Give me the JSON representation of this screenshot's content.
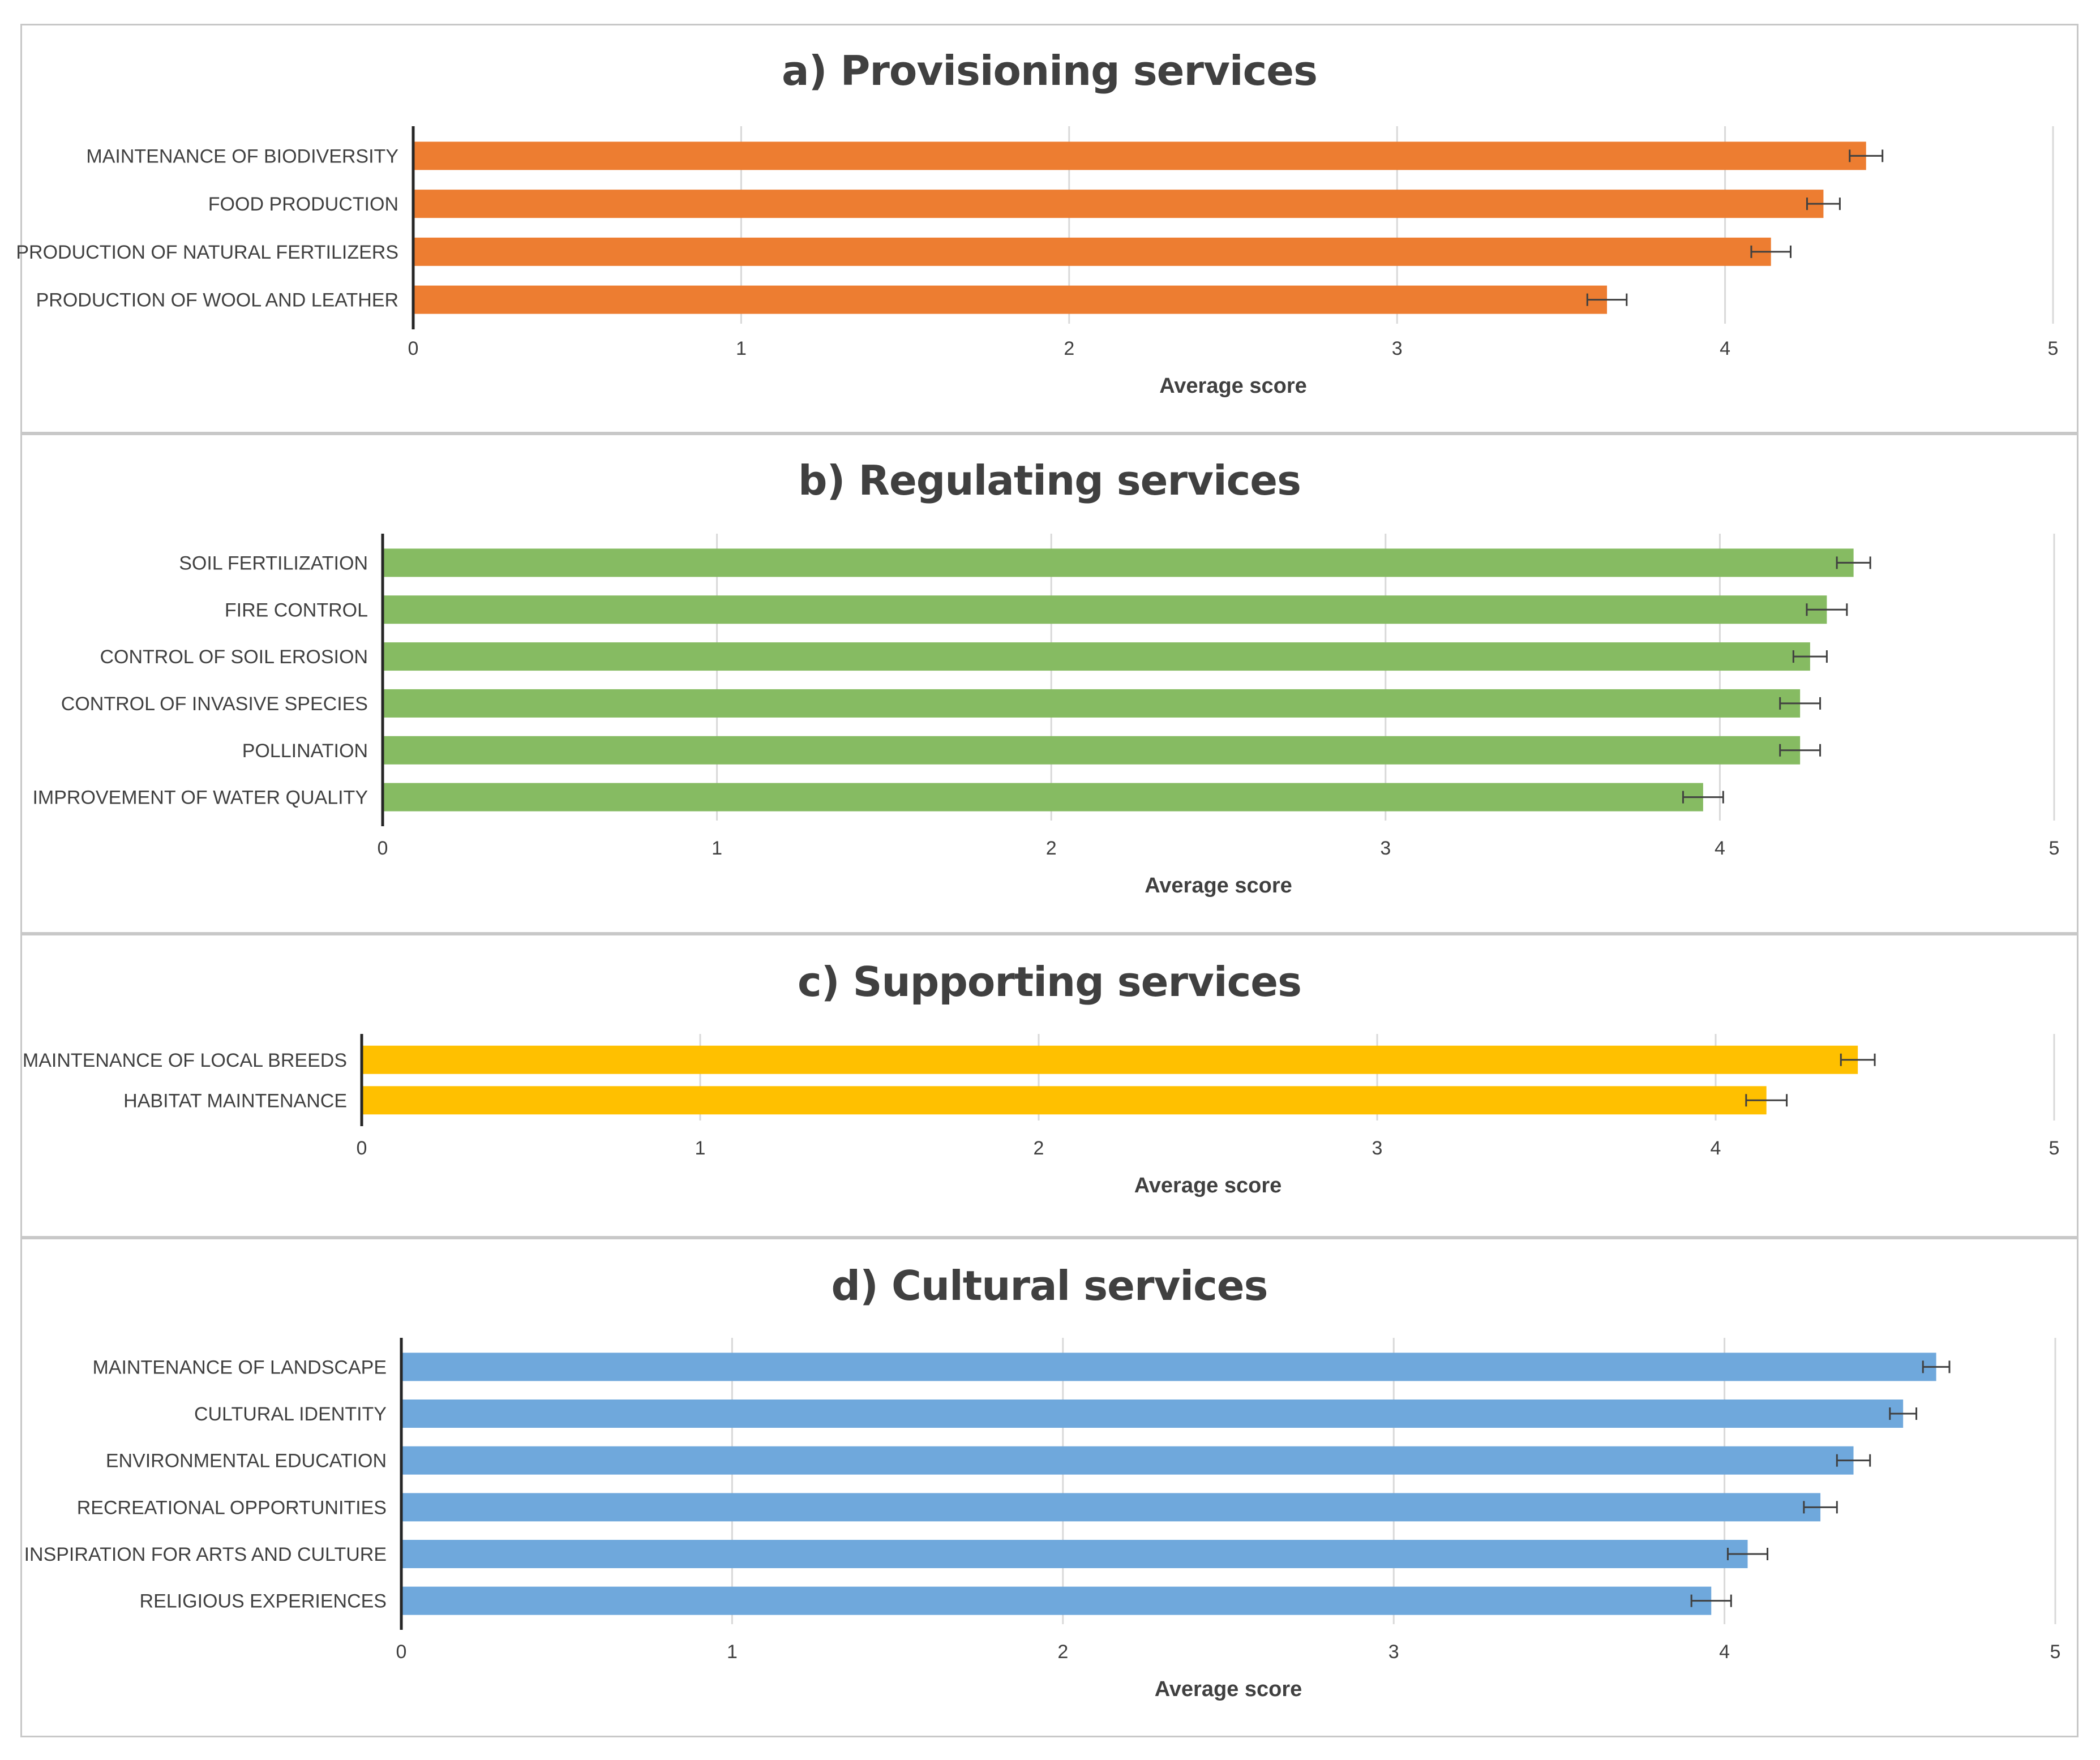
{
  "chart_data": [
    {
      "type": "bar",
      "title": "a) Provisioning services",
      "xlabel": "Average score",
      "xlim": [
        0,
        5
      ],
      "ticks": [
        "0",
        "1",
        "2",
        "3",
        "4",
        "5"
      ],
      "color": "#ED7D31",
      "categories": [
        "MAINTENANCE OF BIODIVERSITY",
        "FOOD PRODUCTION",
        "PRODUCTION OF NATURAL FERTILIZERS",
        "PRODUCTION OF WOOL AND LEATHER"
      ],
      "values": [
        4.43,
        4.3,
        4.14,
        3.64
      ],
      "errors": [
        0.05,
        0.05,
        0.06,
        0.06
      ]
    },
    {
      "type": "bar",
      "title": "b) Regulating services",
      "xlabel": "Average score",
      "xlim": [
        0,
        5
      ],
      "ticks": [
        "0",
        "1",
        "2",
        "3",
        "4",
        "5"
      ],
      "color": "#86BB62",
      "categories": [
        "SOIL FERTILIZATION",
        "FIRE CONTROL",
        "CONTROL OF SOIL EROSION",
        "CONTROL OF INVASIVE SPECIES",
        "POLLINATION",
        "IMPROVEMENT OF WATER QUALITY"
      ],
      "values": [
        4.4,
        4.32,
        4.27,
        4.24,
        4.24,
        3.95
      ],
      "errors": [
        0.05,
        0.06,
        0.05,
        0.06,
        0.06,
        0.06
      ]
    },
    {
      "type": "bar",
      "title": "c) Supporting services",
      "xlabel": "Average score",
      "xlim": [
        0,
        5
      ],
      "ticks": [
        "0",
        "1",
        "2",
        "3",
        "4",
        "5"
      ],
      "color": "#FFC000",
      "categories": [
        "MAINTENANCE OF LOCAL BREEDS",
        "HABITAT MAINTENANCE"
      ],
      "values": [
        4.42,
        4.15
      ],
      "errors": [
        0.05,
        0.06
      ]
    },
    {
      "type": "bar",
      "title": "d) Cultural services",
      "xlabel": "Average score",
      "xlim": [
        0,
        5
      ],
      "ticks": [
        "0",
        "1",
        "2",
        "3",
        "4",
        "5"
      ],
      "color": "#6FA8DC",
      "categories": [
        "MAINTENANCE OF LANDSCAPE",
        "CULTURAL IDENTITY",
        "ENVIRONMENTAL EDUCATION",
        "RECREATIONAL OPPORTUNITIES",
        "INSPIRATION FOR ARTS AND CULTURE",
        "RELIGIOUS EXPERIENCES"
      ],
      "values": [
        4.64,
        4.54,
        4.39,
        4.29,
        4.07,
        3.96
      ],
      "errors": [
        0.04,
        0.04,
        0.05,
        0.05,
        0.06,
        0.06
      ]
    }
  ]
}
